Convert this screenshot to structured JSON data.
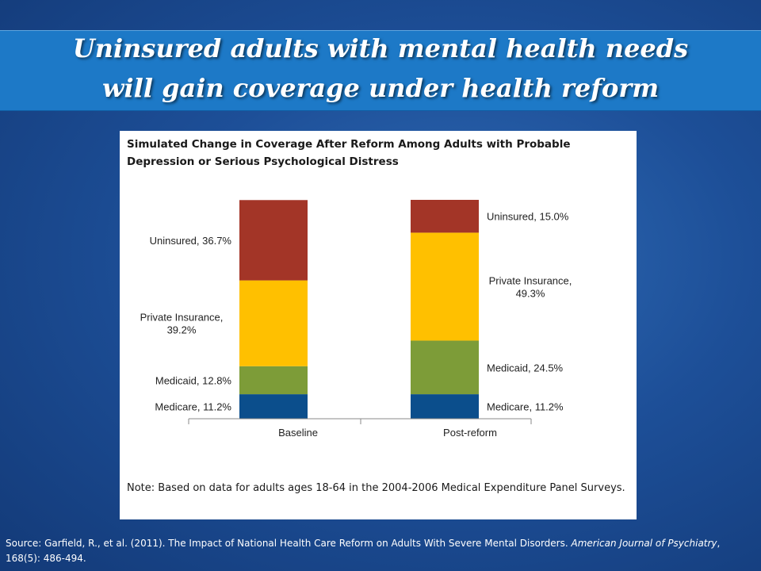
{
  "slide": {
    "title_line1": "Uninsured adults with mental health needs",
    "title_line2": "will gain coverage under health reform",
    "source_prefix": "Source: Garfield, R., et al. (2011). The Impact of National Health Care Reform on Adults With Severe Mental Disorders. ",
    "source_journal": "American Journal of Psychiatry",
    "source_suffix": ", 168(5): 486-494."
  },
  "chart_data": {
    "type": "bar",
    "stacked": true,
    "title": "Simulated Change in Coverage After Reform Among Adults with Probable Depression or Serious Psychological Distress",
    "note": "Note: Based on data for adults ages 18-64 in the 2004-2006 Medical Expenditure Panel Surveys.",
    "categories": [
      "Baseline",
      "Post-reform"
    ],
    "series": [
      {
        "name": "Medicare",
        "values": [
          11.2,
          11.2
        ],
        "color": "#0b4e8c"
      },
      {
        "name": "Medicaid",
        "values": [
          12.8,
          24.5
        ],
        "color": "#7d9c38"
      },
      {
        "name": "Private Insurance",
        "values": [
          39.2,
          49.3
        ],
        "color": "#ffc000"
      },
      {
        "name": "Uninsured",
        "values": [
          36.7,
          15.0
        ],
        "color": "#a33527"
      }
    ],
    "segment_labels": [
      [
        "Medicare, 11.2%",
        "Medicare, 11.2%"
      ],
      [
        "Medicaid, 12.8%",
        "Medicaid, 24.5%"
      ],
      [
        [
          "Private Insurance,",
          "39.2%"
        ],
        [
          "Private Insurance,",
          "49.3%"
        ]
      ],
      [
        "Uninsured, 36.7%",
        "Uninsured, 15.0%"
      ]
    ],
    "ylim": [
      0,
      100
    ],
    "xlabel": "",
    "ylabel": "",
    "legend": "none"
  }
}
